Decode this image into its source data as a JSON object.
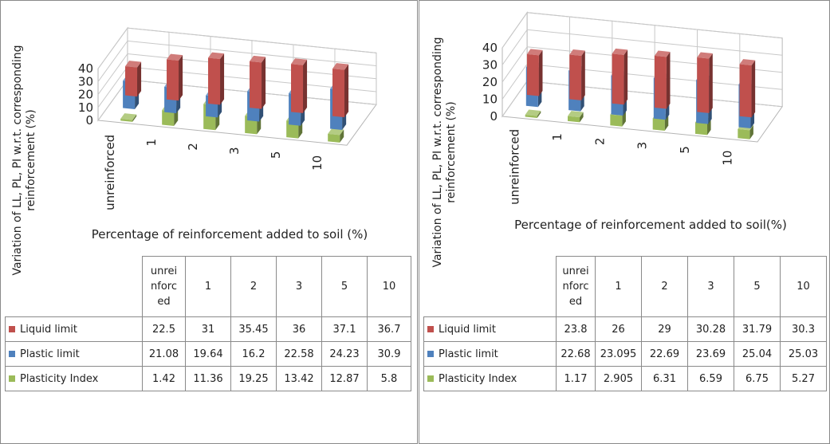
{
  "chart_data": [
    {
      "type": "bar",
      "ylabel": "Variation of LL, PL, PI w.r.t. corresponding reinforcement (%)",
      "xlabel": "Percentage of reinforcement added to soil (%)",
      "ylim": [
        0,
        40
      ],
      "yticks": [
        "0",
        "10",
        "20",
        "30",
        "40"
      ],
      "categories": [
        "unreinforced",
        "1",
        "2",
        "3",
        "5",
        "10"
      ],
      "table_header": [
        "unrei nforc ed",
        "1",
        "2",
        "3",
        "5",
        "10"
      ],
      "series": [
        {
          "name": "Liquid limit",
          "color": "#c0504d",
          "values": [
            22.5,
            31,
            35.45,
            36,
            37.1,
            36.7
          ],
          "labels": [
            "22.5",
            "31",
            "35.45",
            "36",
            "37.1",
            "36.7"
          ]
        },
        {
          "name": "Plastic limit",
          "color": "#4f81bd",
          "values": [
            21.08,
            19.64,
            16.2,
            22.58,
            24.23,
            30.9
          ],
          "labels": [
            "21.08",
            "19.64",
            "16.2",
            "22.58",
            "24.23",
            "30.9"
          ]
        },
        {
          "name": "Plasticity Index",
          "color": "#9bbb59",
          "values": [
            1.42,
            11.36,
            19.25,
            13.42,
            12.87,
            5.8
          ],
          "labels": [
            "1.42",
            "11.36",
            "19.25",
            "13.42",
            "12.87",
            "5.8"
          ]
        }
      ]
    },
    {
      "type": "bar",
      "ylabel": "Variation of LL, PL, PI w.r.t. corresponding reinforcement (%)",
      "xlabel": "Percentage of reinforcement added to soil(%)",
      "ylim": [
        0,
        40
      ],
      "yticks": [
        "0",
        "10",
        "20",
        "30",
        "40"
      ],
      "categories": [
        "unreinforced",
        "1",
        "2",
        "3",
        "5",
        "10"
      ],
      "table_header": [
        "unrei nforc ed",
        "1",
        "2",
        "3",
        "5",
        "10"
      ],
      "series": [
        {
          "name": "Liquid limit",
          "color": "#c0504d",
          "values": [
            23.8,
            26,
            29,
            30.28,
            31.79,
            30.3
          ],
          "labels": [
            "23.8",
            "26",
            "29",
            "30.28",
            "31.79",
            "30.3"
          ]
        },
        {
          "name": "Plastic limit",
          "color": "#4f81bd",
          "values": [
            22.68,
            23.095,
            22.69,
            23.69,
            25.04,
            25.03
          ],
          "labels": [
            "22.68",
            "23.095",
            "22.69",
            "23.69",
            "25.04",
            "25.03"
          ]
        },
        {
          "name": "Plasticity Index",
          "color": "#9bbb59",
          "values": [
            1.17,
            2.905,
            6.31,
            6.59,
            6.75,
            5.27
          ],
          "labels": [
            "1.17",
            "2.905",
            "6.31",
            "6.59",
            "6.75",
            "5.27"
          ]
        }
      ]
    }
  ]
}
